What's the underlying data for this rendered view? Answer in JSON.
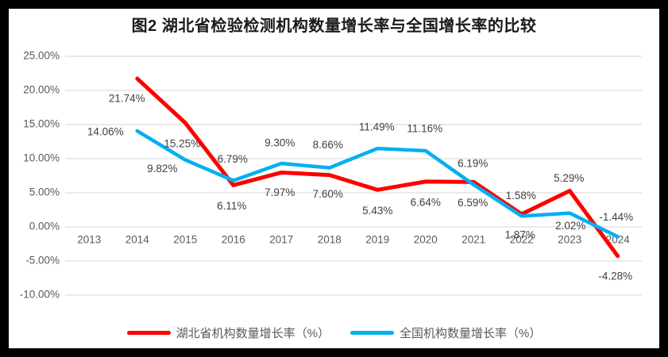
{
  "title": "图2 湖北省检验检测机构数量增长率与全国增长率的比较",
  "legend": {
    "hubei_label": "湖北省机构数量增长率（%）",
    "national_label": "全国机构数量增长率（%）"
  },
  "colors": {
    "hubei_line": "#FF0000",
    "national_line": "#00B0F0",
    "gridline": "#E7E7E7",
    "axis_text": "#595959",
    "data_label_text": "#404040",
    "frame": "#000000",
    "background": "#FFFFFF"
  },
  "chart_data": {
    "type": "line",
    "title": "图2 湖北省检验检测机构数量增长率与全国增长率的比较",
    "categories": [
      "2013",
      "2014",
      "2015",
      "2016",
      "2017",
      "2018",
      "2019",
      "2020",
      "2021",
      "2022",
      "2023",
      "2024"
    ],
    "series": [
      {
        "name": "湖北省机构数量增长率（%）",
        "color": "#FF0000",
        "values": [
          null,
          21.74,
          15.25,
          6.11,
          7.97,
          7.6,
          5.43,
          6.64,
          6.59,
          1.87,
          5.29,
          -4.28
        ],
        "labels": [
          null,
          "21.74%",
          "15.25%",
          "6.11%",
          "7.97%",
          "7.60%",
          "5.43%",
          "6.64%",
          "6.59%",
          "1.87%",
          "5.29%",
          "-4.28%"
        ]
      },
      {
        "name": "全国机构数量增长率（%）",
        "color": "#00B0F0",
        "values": [
          null,
          14.06,
          9.82,
          6.79,
          9.3,
          8.66,
          11.49,
          11.16,
          6.19,
          1.58,
          2.02,
          -1.44
        ],
        "labels": [
          null,
          "14.06%",
          "9.82%",
          "6.79%",
          "9.30%",
          "8.66%",
          "11.49%",
          "11.16%",
          "6.19%",
          "1.58%",
          "2.02%",
          "-1.44%"
        ]
      }
    ],
    "y_ticks": [
      "25.00%",
      "20.00%",
      "15.00%",
      "10.00%",
      "5.00%",
      "0.00%",
      "-5.00%",
      "-10.00%"
    ],
    "y_axis": {
      "min": -10,
      "max": 25,
      "step": 5
    },
    "grid": true,
    "legend_position": "bottom"
  }
}
